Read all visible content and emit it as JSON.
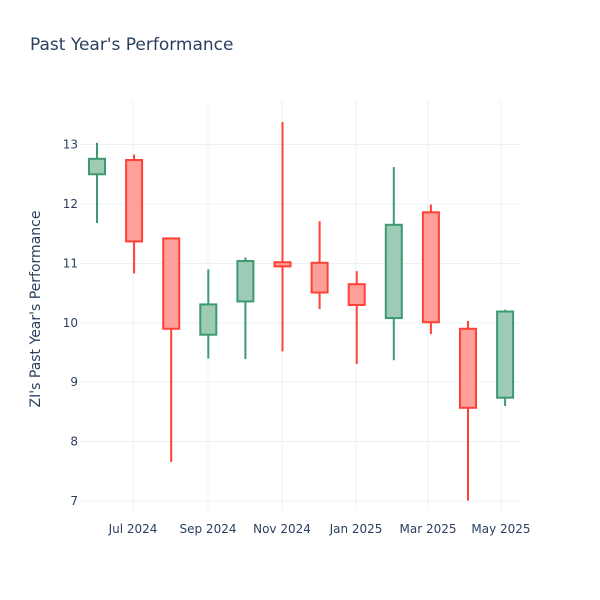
{
  "chart_data": {
    "type": "candlestick",
    "title": "Past Year's Performance",
    "xlabel": "",
    "ylabel": "ZI's Past Year's Performance",
    "ylim": [
      6.85,
      13.75
    ],
    "y_ticks": [
      7,
      8,
      9,
      10,
      11,
      12,
      13
    ],
    "x_ticks": [
      "Jul 2024",
      "Sep 2024",
      "Nov 2024",
      "Jan 2025",
      "Mar 2025",
      "May 2025"
    ],
    "grid": true,
    "colors": {
      "increasing_line": "#3d9970",
      "increasing_fill": "#9ecbb5",
      "decreasing_line": "#ff4136",
      "decreasing_fill": "#ff9f9a",
      "grid": "#ebf0f8",
      "text": "#2a3f5f"
    },
    "candles": [
      {
        "open": 12.5,
        "high": 13.03,
        "low": 11.68,
        "close": 12.76
      },
      {
        "open": 12.74,
        "high": 12.83,
        "low": 10.83,
        "close": 11.37
      },
      {
        "open": 11.42,
        "high": 11.42,
        "low": 7.66,
        "close": 9.9
      },
      {
        "open": 9.8,
        "high": 10.9,
        "low": 9.4,
        "close": 10.31
      },
      {
        "open": 10.36,
        "high": 11.1,
        "low": 9.39,
        "close": 11.04
      },
      {
        "open": 11.02,
        "high": 13.38,
        "low": 9.52,
        "close": 10.95
      },
      {
        "open": 11.01,
        "high": 11.71,
        "low": 10.23,
        "close": 10.51
      },
      {
        "open": 10.65,
        "high": 10.87,
        "low": 9.31,
        "close": 10.3
      },
      {
        "open": 10.08,
        "high": 12.62,
        "low": 9.37,
        "close": 11.65
      },
      {
        "open": 11.86,
        "high": 11.99,
        "low": 9.81,
        "close": 10.01
      },
      {
        "open": 9.9,
        "high": 10.03,
        "low": 7.01,
        "close": 8.57
      },
      {
        "open": 8.74,
        "high": 10.22,
        "low": 8.6,
        "close": 10.19
      }
    ]
  }
}
